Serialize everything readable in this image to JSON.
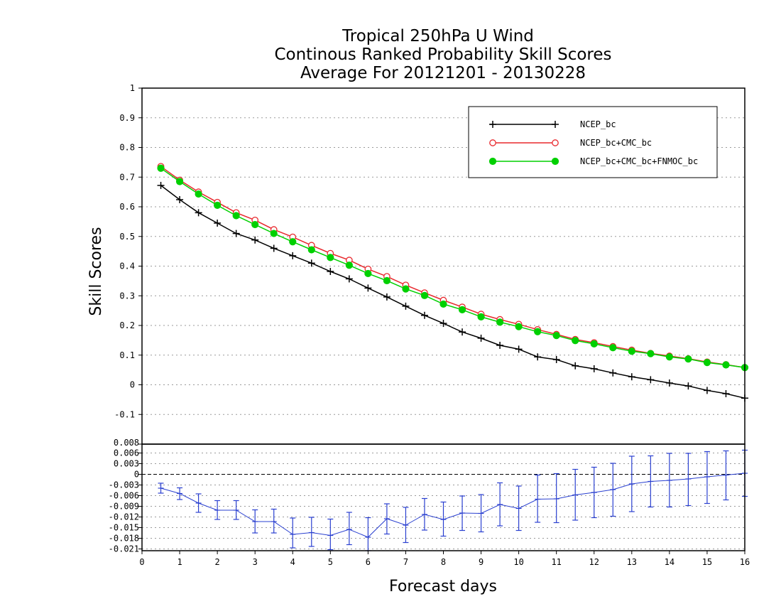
{
  "titles": {
    "line1": "Tropical 250hPa U Wind",
    "line2": "Continous Ranked Probability Skill Scores",
    "line3": "Average For 20121201 - 20130228"
  },
  "colors": {
    "ncep": "#000000",
    "ncep_cmc": "#e8282d",
    "ncep_cmc_fnmoc": "#00d000",
    "diff": "#2a40d0",
    "grid": "#9a9a9a"
  },
  "chart_data": [
    {
      "type": "line",
      "xlabel": "Forecast days",
      "ylabel": "Skill Scores",
      "xlim": [
        0,
        16
      ],
      "ylim": [
        -0.2,
        1
      ],
      "x_ticks": [
        0,
        1,
        2,
        3,
        4,
        5,
        6,
        7,
        8,
        9,
        10,
        11,
        12,
        13,
        14,
        15,
        16
      ],
      "y_ticks": [
        -0.2,
        -0.1,
        0,
        0.1,
        0.2,
        0.3,
        0.4,
        0.5,
        0.6,
        0.7,
        0.8,
        0.9,
        1
      ],
      "y_tick_labels": [
        "",
        "-0.1",
        "0",
        "0.1",
        "0.2",
        "0.3",
        "0.4",
        "0.5",
        "0.6",
        "0.7",
        "0.8",
        "0.9",
        "1"
      ],
      "grid": true,
      "legend_position": "top-right",
      "x": [
        0.5,
        1,
        1.5,
        2,
        2.5,
        3,
        3.5,
        4,
        4.5,
        5,
        5.5,
        6,
        6.5,
        7,
        7.5,
        8,
        8.5,
        9,
        9.5,
        10,
        10.5,
        11,
        11.5,
        12,
        12.5,
        13,
        13.5,
        14,
        14.5,
        15,
        15.5,
        16
      ],
      "series": [
        {
          "name": "NCEP_bc",
          "marker": "plus",
          "values": [
            0.672,
            0.624,
            0.58,
            0.545,
            0.51,
            0.488,
            0.46,
            0.435,
            0.41,
            0.382,
            0.357,
            0.326,
            0.296,
            0.265,
            0.234,
            0.207,
            0.178,
            0.157,
            0.133,
            0.12,
            0.094,
            0.085,
            0.064,
            0.054,
            0.04,
            0.027,
            0.017,
            0.006,
            -0.004,
            -0.019,
            -0.03,
            -0.045
          ]
        },
        {
          "name": "NCEP_bc+CMC_bc",
          "marker": "open-circle",
          "values": [
            0.736,
            0.69,
            0.65,
            0.615,
            0.58,
            0.555,
            0.523,
            0.498,
            0.47,
            0.443,
            0.42,
            0.39,
            0.365,
            0.336,
            0.31,
            0.285,
            0.262,
            0.238,
            0.22,
            0.204,
            0.186,
            0.17,
            0.153,
            0.142,
            0.129,
            0.117,
            0.106,
            0.097,
            0.088,
            0.077,
            0.068,
            0.058
          ]
        },
        {
          "name": "NCEP_bc+CMC_bc+FNMOC_bc",
          "marker": "filled-circle",
          "values": [
            0.73,
            0.685,
            0.643,
            0.605,
            0.57,
            0.54,
            0.51,
            0.482,
            0.455,
            0.429,
            0.403,
            0.375,
            0.351,
            0.323,
            0.301,
            0.272,
            0.253,
            0.229,
            0.211,
            0.196,
            0.179,
            0.166,
            0.149,
            0.138,
            0.125,
            0.113,
            0.105,
            0.094,
            0.087,
            0.075,
            0.067,
            0.058
          ]
        }
      ]
    },
    {
      "type": "line",
      "xlim": [
        0,
        16
      ],
      "ylim": [
        -0.0215,
        0.0085
      ],
      "y_ticks": [
        0.006,
        0.003,
        0,
        -0.003,
        -0.006,
        -0.009,
        -0.012,
        -0.015,
        -0.018,
        -0.021
      ],
      "y_tick_labels": [
        "0.006",
        "0.003",
        "0",
        "-0.003",
        "-0.006",
        "-0.009",
        "-0.012",
        "-0.015",
        "-0.018",
        "-0.021"
      ],
      "top_clipped_label": "0.008",
      "grid": true,
      "x": [
        0.5,
        1,
        1.5,
        2,
        2.5,
        3,
        3.5,
        4,
        4.5,
        5,
        5.5,
        6,
        6.5,
        7,
        7.5,
        8,
        8.5,
        9,
        9.5,
        10,
        10.5,
        11,
        11.5,
        12,
        12.5,
        13,
        13.5,
        14,
        14.5,
        15,
        15.5,
        16
      ],
      "series": [
        {
          "values": [
            -0.0039,
            -0.0054,
            -0.0081,
            -0.0101,
            -0.0101,
            -0.0133,
            -0.0133,
            -0.0169,
            -0.0164,
            -0.0172,
            -0.0155,
            -0.0177,
            -0.0125,
            -0.0143,
            -0.0113,
            -0.0127,
            -0.0109,
            -0.011,
            -0.0085,
            -0.0096,
            -0.007,
            -0.0069,
            -0.0058,
            -0.0051,
            -0.0043,
            -0.0027,
            -0.002,
            -0.0017,
            -0.0013,
            -0.0007,
            -0.0002,
            0.0003
          ],
          "error_low": [
            -0.0053,
            -0.0071,
            -0.0107,
            -0.0127,
            -0.0127,
            -0.0165,
            -0.0165,
            -0.0207,
            -0.0203,
            -0.0212,
            -0.0198,
            -0.0222,
            -0.0168,
            -0.0192,
            -0.0157,
            -0.0174,
            -0.0158,
            -0.0162,
            -0.0145,
            -0.0158,
            -0.0135,
            -0.0136,
            -0.0129,
            -0.0122,
            -0.0118,
            -0.0105,
            -0.0092,
            -0.0092,
            -0.0088,
            -0.0082,
            -0.0072,
            -0.0062
          ],
          "error_high": [
            -0.0025,
            -0.0038,
            -0.0055,
            -0.0074,
            -0.0074,
            -0.01,
            -0.0098,
            -0.0123,
            -0.0121,
            -0.0126,
            -0.0107,
            -0.0122,
            -0.0083,
            -0.0093,
            -0.0068,
            -0.0078,
            -0.0061,
            -0.0057,
            -0.0024,
            -0.0033,
            -0.0002,
            0.0002,
            0.0014,
            0.002,
            0.0031,
            0.0051,
            0.0052,
            0.0059,
            0.0059,
            0.0064,
            0.0066,
            0.0068
          ]
        }
      ]
    }
  ]
}
